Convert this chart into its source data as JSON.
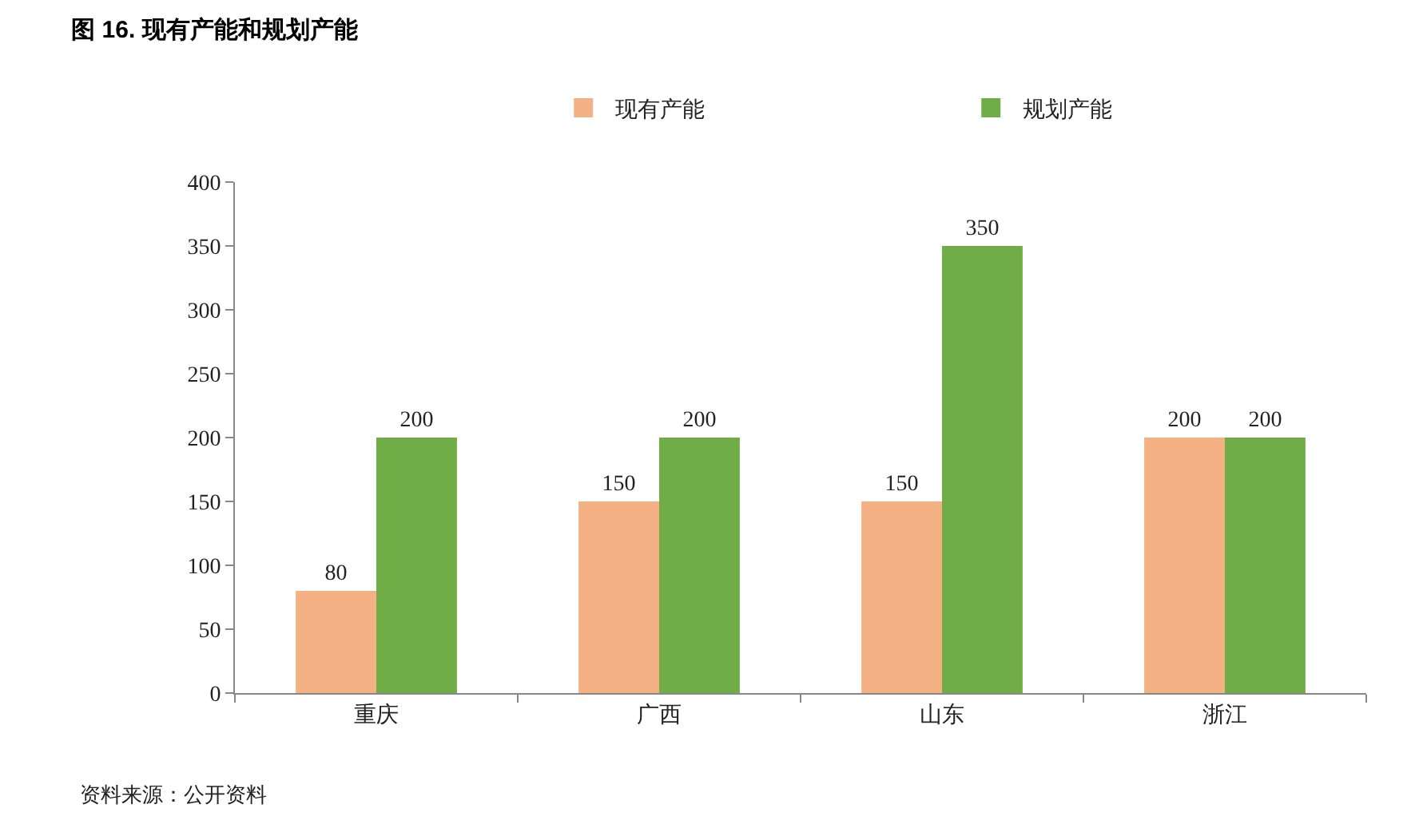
{
  "chart_data": {
    "type": "bar",
    "title": "图 16. 现有产能和规划产能",
    "categories": [
      "重庆",
      "广西",
      "山东",
      "浙江"
    ],
    "series": [
      {
        "name": "现有产能",
        "color": "#f4b183",
        "values": [
          80,
          150,
          150,
          200
        ]
      },
      {
        "name": "规划产能",
        "color": "#70ad47",
        "values": [
          200,
          200,
          350,
          200
        ]
      }
    ],
    "ylim": [
      0,
      400
    ],
    "yticks": [
      0,
      50,
      100,
      150,
      200,
      250,
      300,
      350,
      400
    ],
    "grid": false,
    "legend": "top",
    "data_labels": true,
    "annotations": [
      "资料来源：公开资料"
    ]
  }
}
